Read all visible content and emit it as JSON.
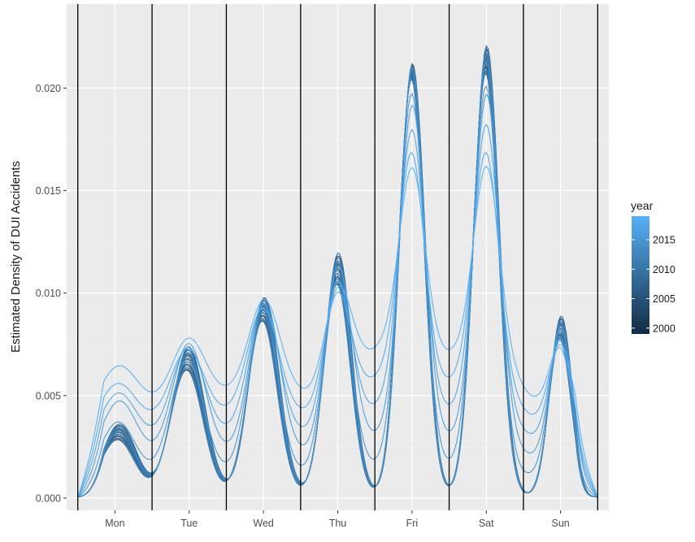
{
  "chart_data": {
    "type": "line",
    "ylabel": "Estimated Density of DUI Accidents",
    "y_ticks": [
      "0.000",
      "0.005",
      "0.010",
      "0.015",
      "0.020"
    ],
    "y_tick_values": [
      0.0,
      0.005,
      0.01,
      0.015,
      0.02
    ],
    "ylim": [
      -0.0006,
      0.0241
    ],
    "xlim": [
      -0.15,
      7.15
    ],
    "day_labels": [
      "Mon",
      "Tue",
      "Wed",
      "Thu",
      "Fri",
      "Sat",
      "Sun"
    ],
    "day_label_positions": [
      0.5,
      1.5,
      2.5,
      3.5,
      4.5,
      5.5,
      6.5
    ],
    "day_boundaries": [
      0,
      1,
      2,
      3,
      4,
      5,
      6,
      7
    ],
    "legend": {
      "title": "year",
      "labels": [
        "2015",
        "2010",
        "2005",
        "2000"
      ],
      "values": [
        2015,
        2010,
        2005,
        2000
      ],
      "range": [
        1999,
        2019
      ],
      "color_low": "#132B43",
      "color_high": "#56B1F7"
    },
    "grid": true,
    "background": "#EBEBEB",
    "series_note": "one density curve per year, 2000-2019",
    "series_years": [
      2000,
      2001,
      2002,
      2003,
      2004,
      2005,
      2006,
      2007,
      2008,
      2009,
      2010,
      2011,
      2012,
      2013,
      2014,
      2015,
      2016,
      2017,
      2018,
      2019
    ],
    "x_sample": [
      0.0,
      0.5,
      0.8,
      1.0,
      1.5,
      2.0,
      2.5,
      3.0,
      3.5,
      4.0,
      4.6,
      5.0,
      5.6,
      6.0,
      6.55,
      7.0
    ],
    "typical_year_y": [
      0.0,
      0.0035,
      0.0015,
      0.001,
      0.007,
      0.001,
      0.009,
      0.0013,
      0.0115,
      0.0015,
      0.021,
      0.0025,
      0.0215,
      0.003,
      0.0085,
      0.0002
    ],
    "recent_year_y": [
      0.0,
      0.0095,
      0.004,
      0.0025,
      0.0105,
      0.006,
      0.0115,
      0.0065,
      0.0105,
      0.0075,
      0.013,
      0.007,
      0.014,
      0.006,
      0.0075,
      0.0002
    ]
  }
}
